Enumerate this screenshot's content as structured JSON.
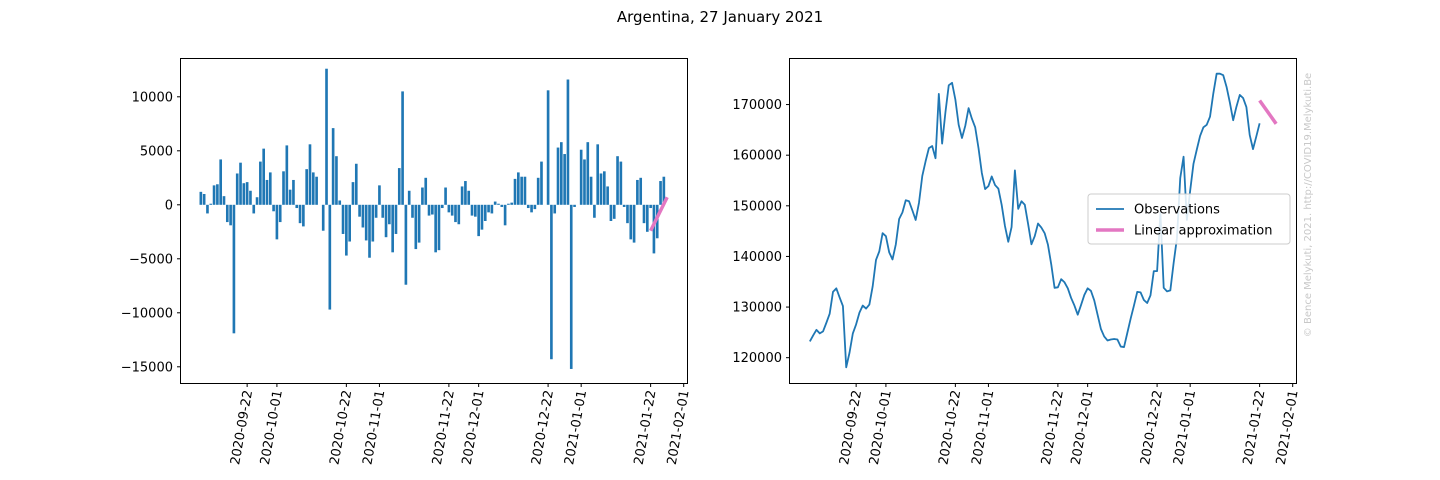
{
  "figure": {
    "suptitle": "Argentina, 27 January 2021",
    "watermark": "© Bence Melykuti, 2021. http://COVID19.Melykuti.Be"
  },
  "colors": {
    "bars": "#1f77b4",
    "observations": "#1f77b4",
    "linear_fit": "#e377c2"
  },
  "chart_data": [
    {
      "type": "bar",
      "title": "",
      "xlabel": "",
      "ylabel": "",
      "x_start": "2020-09-08",
      "x_end": "2021-01-27",
      "xlim": [
        "2020-09-02",
        "2021-02-02"
      ],
      "ylim": [
        -16500,
        13500
      ],
      "xticks": [
        "2020-09-22",
        "2020-10-01",
        "2020-10-22",
        "2020-11-01",
        "2020-11-22",
        "2020-12-01",
        "2020-12-22",
        "2021-01-01",
        "2021-01-22",
        "2021-02-01"
      ],
      "yticks": [
        -15000,
        -10000,
        -5000,
        0,
        5000,
        10000
      ],
      "ytick_labels": [
        "−15000",
        "−10000",
        "−5000",
        "0",
        "5000",
        "10000"
      ],
      "values": [
        1200,
        1000,
        -800,
        100,
        1800,
        1900,
        4200,
        800,
        -1600,
        -1900,
        -11900,
        2900,
        3900,
        2000,
        2100,
        1300,
        -800,
        700,
        4000,
        5200,
        2300,
        3000,
        -600,
        -3200,
        -1600,
        3100,
        5500,
        1400,
        2300,
        -300,
        -1700,
        -2000,
        3300,
        5600,
        3000,
        2600,
        0,
        -2400,
        12600,
        -9700,
        7100,
        4500,
        400,
        -2700,
        -4700,
        -3400,
        2100,
        3800,
        -1100,
        -2100,
        -3300,
        -4900,
        -3400,
        -1200,
        1800,
        -1200,
        -3000,
        -1800,
        -4400,
        -2700,
        3400,
        10500,
        -7400,
        1300,
        -1200,
        -4100,
        -3500,
        1600,
        2500,
        -1000,
        -900,
        -4400,
        -4200,
        -300,
        1600,
        -700,
        -1000,
        -1600,
        -1800,
        1700,
        2200,
        1300,
        -1000,
        -1100,
        -2900,
        -2300,
        -1500,
        -700,
        -800,
        300,
        100,
        -200,
        -1900,
        100,
        200,
        2400,
        3000,
        2600,
        2600,
        -300,
        -700,
        -400,
        2500,
        4000,
        0,
        10600,
        -14300,
        -800,
        5300,
        5800,
        4700,
        11600,
        -15200,
        -200,
        0,
        5100,
        4200,
        5800,
        2600,
        -1200,
        5600,
        2900,
        3100,
        1700,
        -1500,
        -1300,
        4500,
        4000,
        -200,
        -1700,
        -3200,
        -3500,
        2300,
        2500,
        -1700,
        -2500,
        -300,
        -4500,
        -3100,
        2200,
        2600
      ],
      "linear_approximation": {
        "x_start": "2021-01-22",
        "x_end": "2021-01-27",
        "y_start": -2400,
        "y_end": 700
      }
    },
    {
      "type": "line",
      "title": "",
      "xlabel": "",
      "ylabel": "",
      "x_start": "2020-09-08",
      "x_end": "2021-01-27",
      "xlim": [
        "2020-09-02",
        "2021-02-02"
      ],
      "ylim": [
        115000,
        179000
      ],
      "xticks": [
        "2020-09-22",
        "2020-10-01",
        "2020-10-22",
        "2020-11-01",
        "2020-11-22",
        "2020-12-01",
        "2020-12-22",
        "2021-01-01",
        "2021-01-22",
        "2021-02-01"
      ],
      "yticks": [
        120000,
        130000,
        140000,
        150000,
        160000,
        170000
      ],
      "ytick_labels": [
        "120000",
        "130000",
        "140000",
        "150000",
        "160000",
        "170000"
      ],
      "legend_position": "center-right",
      "series": [
        {
          "name": "Observations",
          "values": [
            123200,
            124400,
            125500,
            124800,
            125200,
            126900,
            128700,
            133000,
            133700,
            131900,
            130200,
            118100,
            121000,
            124800,
            126600,
            128900,
            130300,
            129700,
            130500,
            134100,
            139300,
            141000,
            144600,
            144000,
            140800,
            139400,
            142400,
            147400,
            148700,
            151100,
            150900,
            149100,
            147200,
            150600,
            155900,
            158800,
            161400,
            161800,
            159400,
            172100,
            162300,
            168500,
            173800,
            174300,
            171000,
            166000,
            163400,
            165800,
            169300,
            167200,
            165500,
            161400,
            156500,
            153300,
            153900,
            155800,
            154100,
            153400,
            150200,
            146000,
            142900,
            145800,
            157000,
            149400,
            150900,
            150200,
            146400,
            142400,
            144000,
            146500,
            145700,
            144600,
            142300,
            138400,
            133800,
            133900,
            135500,
            134900,
            133700,
            131800,
            130300,
            128500,
            130400,
            132400,
            133700,
            133200,
            131300,
            128500,
            125700,
            124200,
            123400,
            123600,
            123700,
            123600,
            122200,
            122100,
            124900,
            127700,
            130300,
            133000,
            132900,
            131400,
            130800,
            132300,
            137100,
            137100,
            148600,
            133800,
            133100,
            133300,
            138700,
            143600,
            155500,
            159700,
            147200,
            153000,
            158300,
            161100,
            163800,
            165500,
            166000,
            167600,
            172200,
            176100,
            176100,
            175800,
            173500,
            170400,
            166900,
            169600,
            171900,
            171300,
            169500,
            164000,
            161200,
            163700,
            166300
          ]
        },
        {
          "name": "Linear approximation",
          "x_start": "2021-01-22",
          "x_end": "2021-01-27",
          "y_start": 170800,
          "y_end": 166200
        }
      ]
    }
  ]
}
